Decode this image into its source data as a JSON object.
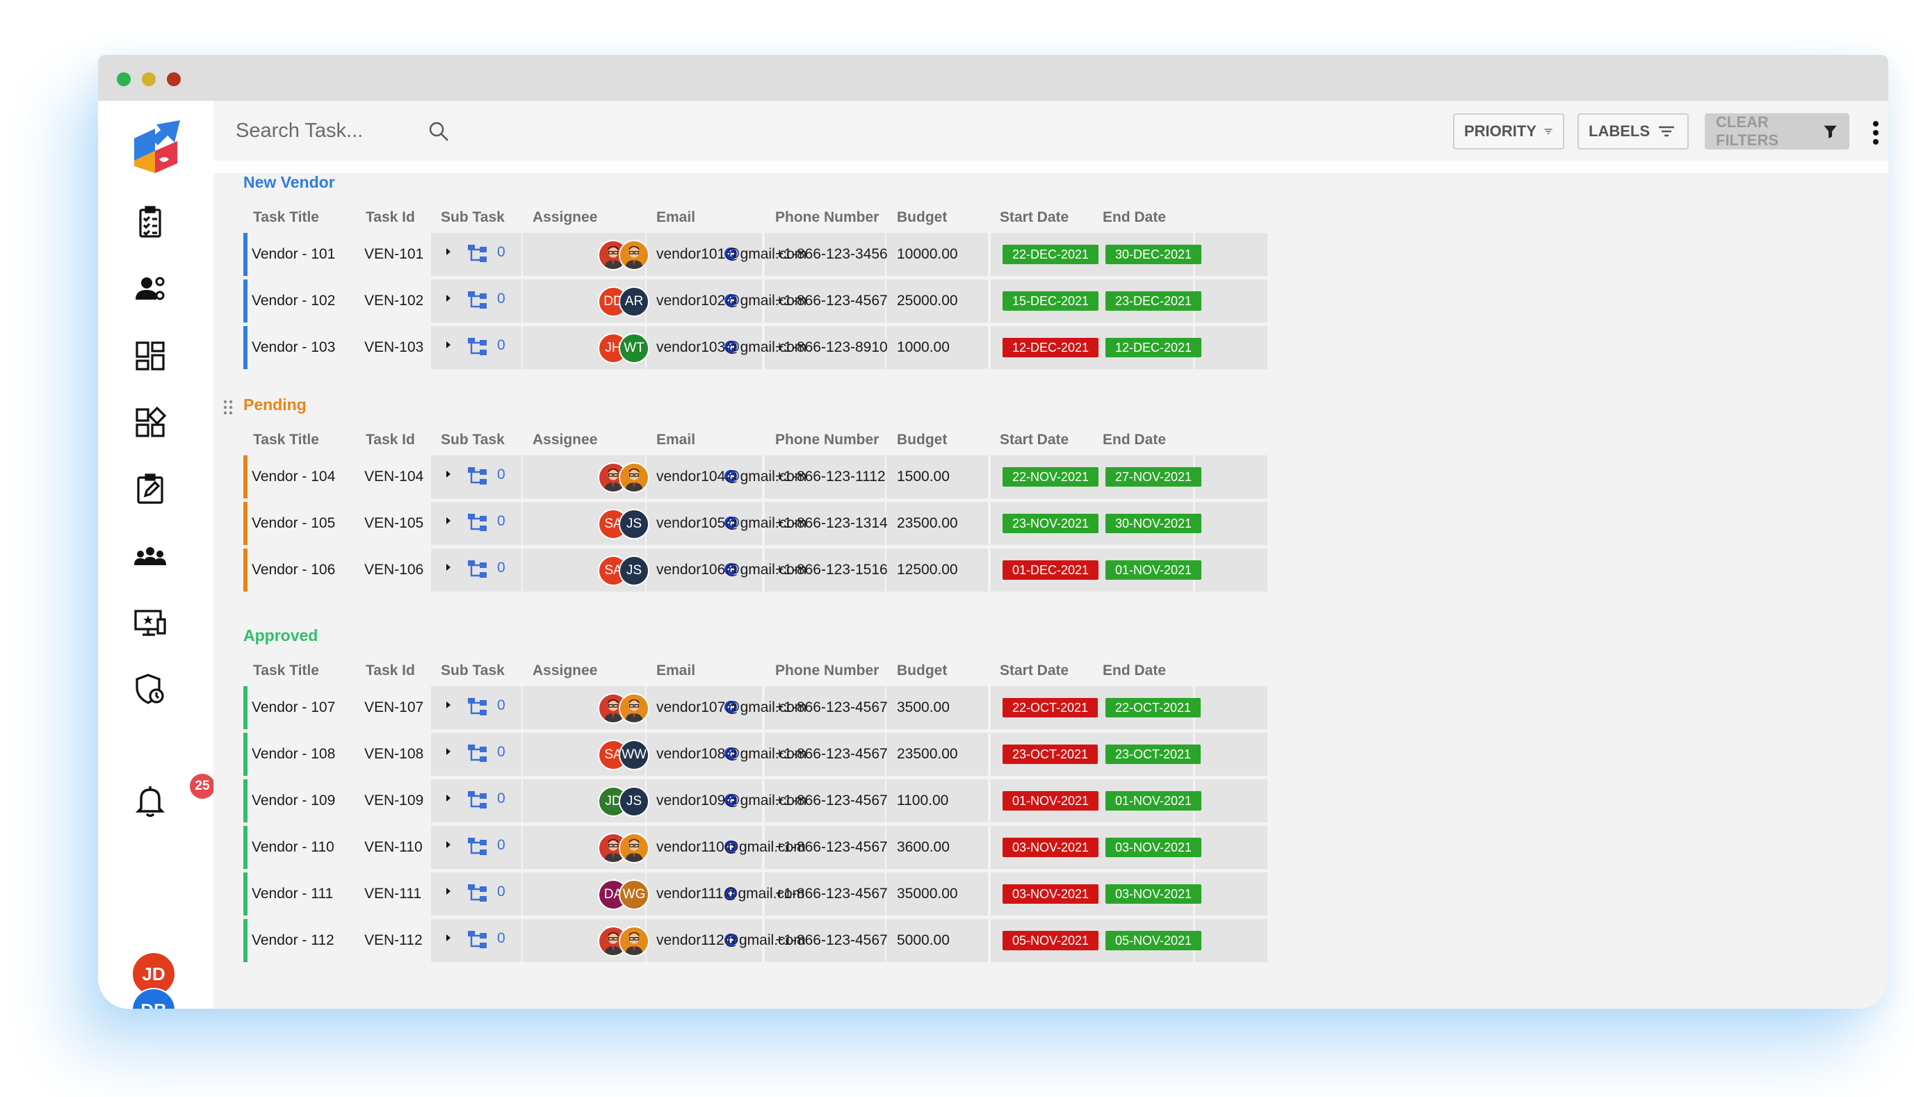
{
  "search": {
    "placeholder": "Search Task..."
  },
  "filters": {
    "priority": "PRIORITY",
    "labels": "LABELS",
    "clear": "CLEAR FILTERS"
  },
  "notifications": {
    "count": "25"
  },
  "users": [
    "JD",
    "DB"
  ],
  "columns": [
    "Task Title",
    "Task Id",
    "Sub Task",
    "Assignee",
    "Email",
    "Phone Number",
    "Budget",
    "Start Date",
    "End Date"
  ],
  "colors": {
    "new_vendor": "#2f7de1",
    "pending": "#e98515",
    "approved": "#2fbf68",
    "tag_green": "#2aa52a",
    "tag_red": "#d01414"
  },
  "sections": [
    {
      "title": "New Vendor",
      "tasks": [
        {
          "title": "Vendor - 101",
          "id": "VEN-101",
          "subtasks": "0",
          "assignees": [
            "photo",
            "photo"
          ],
          "email": "vendor101@gmail.com",
          "phone": "+1-866-123-3456",
          "budget": "10000.00",
          "start": "22-DEC-2021",
          "start_status": "green",
          "end": "30-DEC-2021",
          "end_status": "green"
        },
        {
          "title": "Vendor - 102",
          "id": "VEN-102",
          "subtasks": "0",
          "assignees": [
            "DD",
            "AR"
          ],
          "email": "vendor102@gmail.com",
          "phone": "+1-866-123-4567",
          "budget": "25000.00",
          "start": "15-DEC-2021",
          "start_status": "green",
          "end": "23-DEC-2021",
          "end_status": "green"
        },
        {
          "title": "Vendor - 103",
          "id": "VEN-103",
          "subtasks": "0",
          "assignees": [
            "JH",
            "WT"
          ],
          "email": "vendor103@gmail.com",
          "phone": "+1-866-123-8910",
          "budget": "1000.00",
          "start": "12-DEC-2021",
          "start_status": "red",
          "end": "12-DEC-2021",
          "end_status": "green"
        }
      ]
    },
    {
      "title": "Pending",
      "tasks": [
        {
          "title": "Vendor - 104",
          "id": "VEN-104",
          "subtasks": "0",
          "assignees": [
            "photo",
            "photo"
          ],
          "email": "vendor104@gmail.com",
          "phone": "+1-866-123-1112",
          "budget": "1500.00",
          "start": "22-NOV-2021",
          "start_status": "green",
          "end": "27-NOV-2021",
          "end_status": "green"
        },
        {
          "title": "Vendor - 105",
          "id": "VEN-105",
          "subtasks": "0",
          "assignees": [
            "SA",
            "JS"
          ],
          "email": "vendor105@gmail.com",
          "phone": "+1-866-123-1314",
          "budget": "23500.00",
          "start": "23-NOV-2021",
          "start_status": "green",
          "end": "30-NOV-2021",
          "end_status": "green"
        },
        {
          "title": "Vendor - 106",
          "id": "VEN-106",
          "subtasks": "0",
          "assignees": [
            "SA",
            "JS"
          ],
          "email": "vendor106@gmail.com",
          "phone": "+1-866-123-1516",
          "budget": "12500.00",
          "start": "01-DEC-2021",
          "start_status": "red",
          "end": "01-NOV-2021",
          "end_status": "green"
        }
      ]
    },
    {
      "title": "Approved",
      "tasks": [
        {
          "title": "Vendor - 107",
          "id": "VEN-107",
          "subtasks": "0",
          "assignees": [
            "photo",
            "photo"
          ],
          "email": "vendor107@gmail.com",
          "phone": "+1-866-123-4567",
          "budget": "3500.00",
          "start": "22-OCT-2021",
          "start_status": "red",
          "end": "22-OCT-2021",
          "end_status": "green"
        },
        {
          "title": "Vendor - 108",
          "id": "VEN-108",
          "subtasks": "0",
          "assignees": [
            "SA",
            "WW"
          ],
          "email": "vendor108@gmail.com",
          "phone": "+1-866-123-4567",
          "budget": "23500.00",
          "start": "23-OCT-2021",
          "start_status": "red",
          "end": "23-OCT-2021",
          "end_status": "green"
        },
        {
          "title": "Vendor - 109",
          "id": "VEN-109",
          "subtasks": "0",
          "assignees": [
            "JD",
            "JS"
          ],
          "email": "vendor109@gmail.com",
          "phone": "+1-866-123-4567",
          "budget": "1100.00",
          "start": "01-NOV-2021",
          "start_status": "red",
          "end": "01-NOV-2021",
          "end_status": "green"
        },
        {
          "title": "Vendor - 110",
          "id": "VEN-110",
          "subtasks": "0",
          "assignees": [
            "photo",
            "photo"
          ],
          "email": "vendor110@gmail.com",
          "phone": "+1-866-123-4567",
          "budget": "3600.00",
          "start": "03-NOV-2021",
          "start_status": "red",
          "end": "03-NOV-2021",
          "end_status": "green"
        },
        {
          "title": "Vendor - 111",
          "id": "VEN-111",
          "subtasks": "0",
          "assignees": [
            "DA",
            "WG"
          ],
          "email": "vendor111@gmail.com",
          "phone": "+1-866-123-4567",
          "budget": "35000.00",
          "start": "03-NOV-2021",
          "start_status": "red",
          "end": "03-NOV-2021",
          "end_status": "green"
        },
        {
          "title": "Vendor - 112",
          "id": "VEN-112",
          "subtasks": "0",
          "assignees": [
            "photo",
            "photo"
          ],
          "email": "vendor112@gmail.com",
          "phone": "+1-866-123-4567",
          "budget": "5000.00",
          "start": "05-NOV-2021",
          "start_status": "red",
          "end": "05-NOV-2021",
          "end_status": "green"
        }
      ]
    }
  ]
}
